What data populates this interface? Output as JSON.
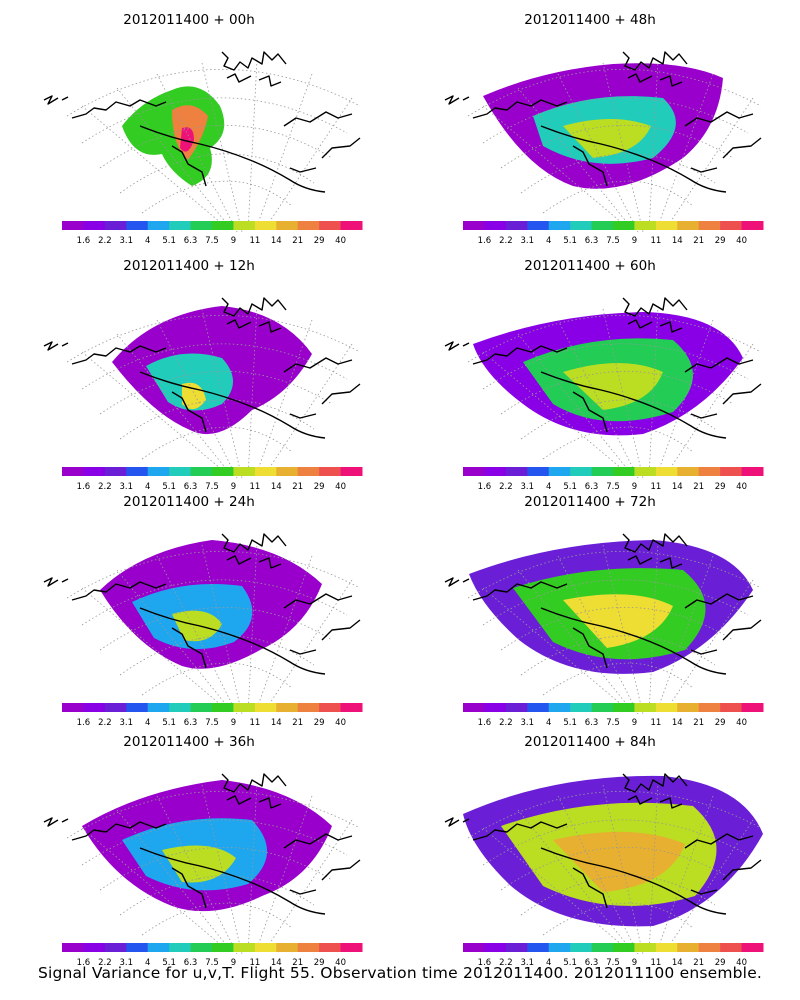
{
  "panels": [
    {
      "title": "2012011400 + 00h",
      "coverage": 0.3
    },
    {
      "title": "2012011400 + 48h",
      "coverage": 0.75
    },
    {
      "title": "2012011400 + 12h",
      "coverage": 0.5
    },
    {
      "title": "2012011400 + 60h",
      "coverage": 0.85
    },
    {
      "title": "2012011400 + 24h",
      "coverage": 0.65
    },
    {
      "title": "2012011400 + 72h",
      "coverage": 0.88
    },
    {
      "title": "2012011400 + 36h",
      "coverage": 0.75
    },
    {
      "title": "2012011400 + 84h",
      "coverage": 0.92
    }
  ],
  "colorbar": {
    "labels": [
      "1.6",
      "2.2",
      "3.1",
      "4",
      "5.1",
      "6.3",
      "7.5",
      "9",
      "11",
      "14",
      "21",
      "29",
      "40"
    ],
    "colors": [
      "#9900cc",
      "#8a00e6",
      "#6a1fd6",
      "#2455ee",
      "#1ea7ee",
      "#22ccbb",
      "#22cc55",
      "#33cc22",
      "#bbdd22",
      "#eedd33",
      "#e8b030",
      "#ee8040",
      "#ee5050",
      "#ee1177"
    ]
  },
  "footer": "Signal Variance for u,v,T. Flight 55. Observation time 2012011400. 2012011100 ensemble."
}
